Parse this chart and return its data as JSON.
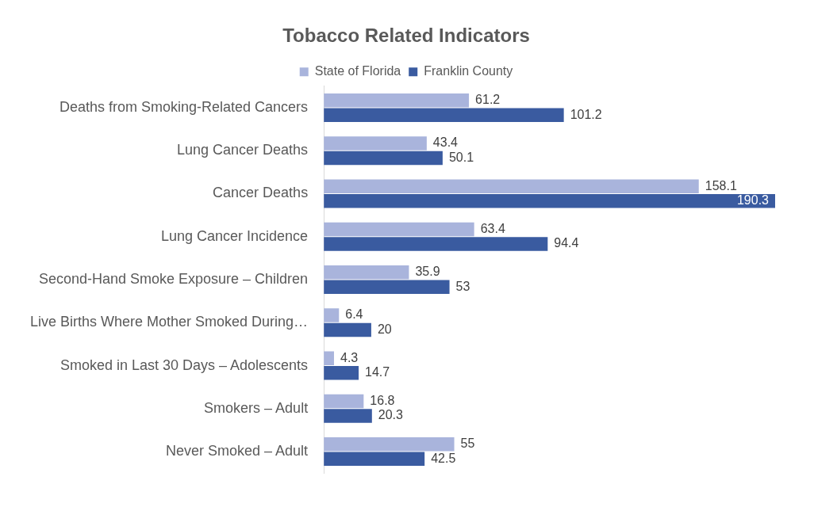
{
  "chart_data": {
    "type": "bar",
    "orientation": "horizontal",
    "title": "Tobacco Related Indicators",
    "categories": [
      "Deaths from Smoking-Related Cancers",
      "Lung Cancer Deaths",
      "Cancer Deaths",
      "Lung Cancer Incidence",
      "Second-Hand Smoke Exposure – Children",
      "Live Births Where Mother Smoked During…",
      "Smoked in Last 30 Days – Adolescents",
      "Smokers – Adult",
      "Never Smoked – Adult"
    ],
    "series": [
      {
        "name": "State of Florida",
        "color": "#a9b4dc",
        "values": [
          61.2,
          43.4,
          158.1,
          63.4,
          35.9,
          6.4,
          4.3,
          16.8,
          55
        ]
      },
      {
        "name": "Franklin County",
        "color": "#3a5ba0",
        "values": [
          101.2,
          50.1,
          190.3,
          94.4,
          53,
          20,
          14.7,
          20.3,
          42.5
        ]
      }
    ],
    "data_labels": true,
    "grid": false,
    "legend": "top"
  }
}
